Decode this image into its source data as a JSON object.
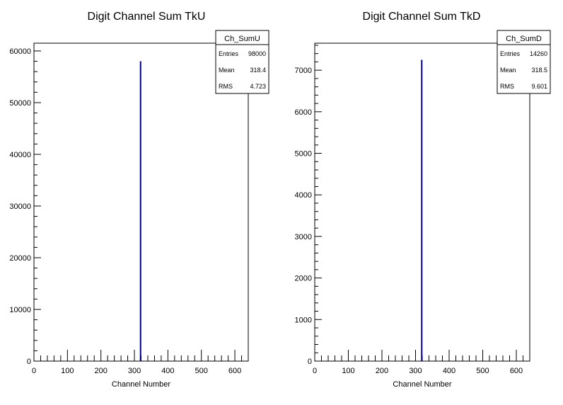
{
  "chart_data": [
    {
      "type": "bar",
      "title": "Digit Channel Sum TkU",
      "xlabel": "Channel Number",
      "ylabel": "",
      "xlim": [
        0,
        640
      ],
      "ylim": [
        0,
        61500
      ],
      "xticks": [
        0,
        100,
        200,
        300,
        400,
        500,
        600
      ],
      "yticks": [
        0,
        10000,
        20000,
        30000,
        40000,
        50000,
        60000
      ],
      "bars": [
        {
          "x": 318.4,
          "value": 58000
        }
      ],
      "line_color": "#000080",
      "stats": {
        "name": "Ch_SumU",
        "rows": [
          {
            "label": "Entries",
            "value": "98000"
          },
          {
            "label": "Mean",
            "value": "318.4"
          },
          {
            "label": "RMS",
            "value": "4.723"
          }
        ]
      }
    },
    {
      "type": "bar",
      "title": "Digit Channel Sum TkD",
      "xlabel": "Channel Number",
      "ylabel": "",
      "xlim": [
        0,
        640
      ],
      "ylim": [
        0,
        7650
      ],
      "xticks": [
        0,
        100,
        200,
        300,
        400,
        500,
        600
      ],
      "yticks": [
        0,
        1000,
        2000,
        3000,
        4000,
        5000,
        6000,
        7000
      ],
      "bars": [
        {
          "x": 318.5,
          "value": 7250
        }
      ],
      "line_color": "#000080",
      "stats": {
        "name": "Ch_SumD",
        "rows": [
          {
            "label": "Entries",
            "value": "14260"
          },
          {
            "label": "Mean",
            "value": "318.5"
          },
          {
            "label": "RMS",
            "value": "9.601"
          }
        ]
      }
    }
  ]
}
